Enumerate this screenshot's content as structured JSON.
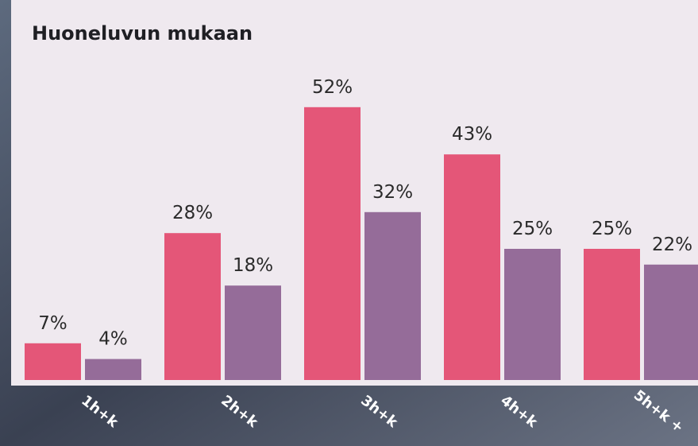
{
  "chart_data": {
    "type": "bar",
    "title": "Huoneluvun mukaan",
    "categories": [
      "1h+k",
      "2h+k",
      "3h+k",
      "4h+k",
      "5h+k +"
    ],
    "series": [
      {
        "color": "#e45678",
        "values": [
          7,
          28,
          52,
          43,
          25
        ],
        "value_labels": [
          "7%",
          "28%",
          "52%",
          "43%",
          "25%"
        ]
      },
      {
        "color": "#956c99",
        "values": [
          4,
          18,
          32,
          25,
          22
        ],
        "value_labels": [
          "4%",
          "18%",
          "32%",
          "25%",
          "22%"
        ]
      }
    ]
  }
}
